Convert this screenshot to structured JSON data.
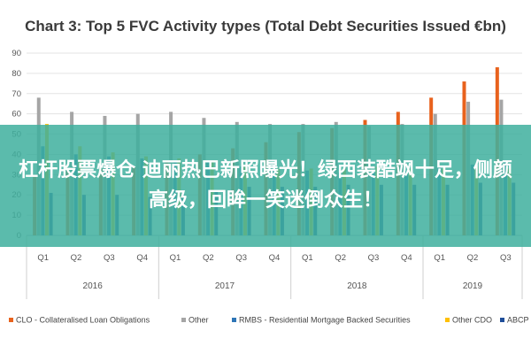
{
  "chart_data": {
    "type": "bar",
    "title": "Chart 3: Top 5 FVC Activity types (Total Debt Securities Issued €bn)",
    "xlabel": "",
    "ylabel": "",
    "ylim": [
      0,
      90
    ],
    "yticks": [
      0,
      10,
      20,
      30,
      40,
      50,
      60,
      70,
      80,
      90
    ],
    "grid": true,
    "legend_position": "bottom",
    "categories": [
      "Q1",
      "Q2",
      "Q3",
      "Q4",
      "Q1",
      "Q2",
      "Q3",
      "Q4",
      "Q1",
      "Q2",
      "Q3",
      "Q4",
      "Q1",
      "Q2",
      "Q3"
    ],
    "groups": [
      {
        "label": "2016",
        "count": 4
      },
      {
        "label": "2017",
        "count": 4
      },
      {
        "label": "2018",
        "count": 4
      },
      {
        "label": "2019",
        "count": 3
      }
    ],
    "series": [
      {
        "name": "CLO - Collateralised Loan Obligations",
        "color": "#e8621d",
        "values": [
          30,
          32,
          33,
          34,
          36,
          40,
          43,
          46,
          51,
          53,
          57,
          61,
          68,
          76,
          83
        ]
      },
      {
        "name": "Other",
        "color": "#a5a5a5",
        "values": [
          68,
          61,
          59,
          60,
          61,
          58,
          56,
          55,
          55,
          56,
          54,
          55,
          60,
          66,
          67
        ]
      },
      {
        "name": "RMBS - Residential Mortgage Backed Securities",
        "color": "#2e75b6",
        "values": [
          44,
          40,
          39,
          38,
          37,
          36,
          34,
          33,
          32,
          31,
          31,
          32,
          34,
          35,
          36
        ]
      },
      {
        "name": "Other CDO",
        "color": "#ffc000",
        "values": [
          55,
          44,
          41,
          39,
          38,
          36,
          34,
          33,
          33,
          33,
          34,
          33,
          33,
          34,
          33
        ]
      },
      {
        "name": "ABCP",
        "color": "#1f4e99",
        "values": [
          21,
          20,
          20,
          19,
          20,
          22,
          24,
          24,
          24,
          25,
          25,
          25,
          25,
          26,
          26
        ]
      }
    ]
  },
  "overlay": {
    "text": "杠杆股票爆仓 迪丽热巴新照曝光！绿西装酷飒十足，侧颜高级，回眸一笑迷倒众生！"
  }
}
